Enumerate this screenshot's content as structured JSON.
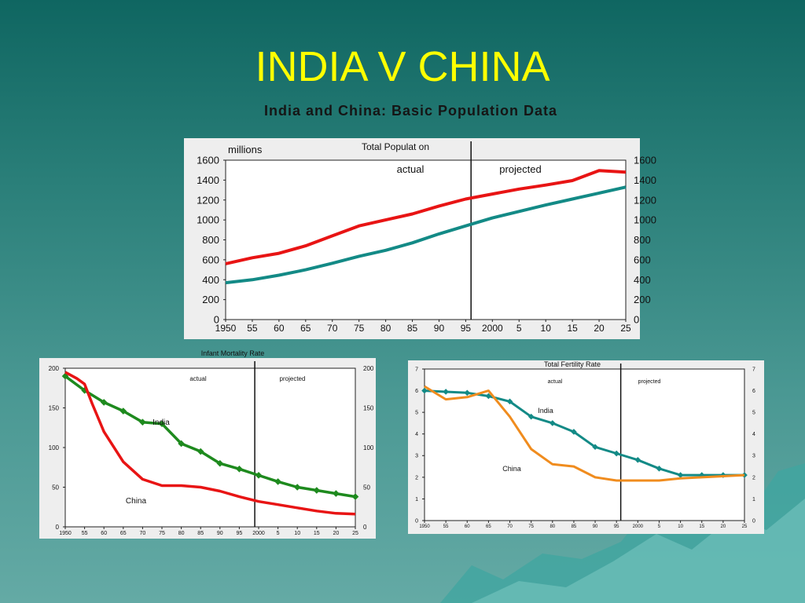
{
  "slide": {
    "title": "INDIA V CHINA",
    "subtitle": "India and China:  Basic Population Data"
  },
  "colors": {
    "india_population": "#e81414",
    "china_population": "#138a86",
    "india_infant": "#1e8a1e",
    "china_infant": "#e81414",
    "india_fertility": "#138a86",
    "china_fertility": "#f08c1e",
    "title": "#ffff00"
  },
  "chart_data": [
    {
      "type": "line",
      "title": "Total Populat on",
      "ylabel": "millions",
      "xlabel": "",
      "ylim": [
        0,
        1600
      ],
      "yticks": [
        "0",
        "200",
        "400",
        "600",
        "800",
        "1000",
        "1200",
        "1400",
        "1600"
      ],
      "xticks": [
        "1950",
        "55",
        "60",
        "65",
        "70",
        "75",
        "80",
        "85",
        "90",
        "95",
        "2000",
        "5",
        "10",
        "15",
        "20",
        "25"
      ],
      "divider_x": 1996,
      "region_labels": [
        "actual",
        "projected"
      ],
      "grid": false,
      "series": [
        {
          "x": [
            1950,
            1955,
            1960,
            1965,
            1970,
            1975,
            1980,
            1985,
            1990,
            1995,
            2000,
            2005,
            2010,
            2015,
            2020,
            2025
          ],
          "values": [
            560,
            620,
            665,
            740,
            840,
            940,
            1000,
            1060,
            1140,
            1210,
            1260,
            1310,
            1350,
            1395,
            1495,
            1480
          ]
        },
        {
          "x": [
            1950,
            1955,
            1960,
            1965,
            1970,
            1975,
            1980,
            1985,
            1990,
            1995,
            2000,
            2005,
            2010,
            2015,
            2020,
            2025
          ],
          "values": [
            370,
            400,
            445,
            500,
            565,
            635,
            695,
            770,
            860,
            940,
            1020,
            1085,
            1150,
            1210,
            1270,
            1330
          ]
        }
      ]
    },
    {
      "type": "line",
      "title": "Infant Mortality Rate",
      "ylim": [
        0,
        200
      ],
      "yticks": [
        "0",
        "50",
        "100",
        "150",
        "200"
      ],
      "xticks": [
        "1950",
        "55",
        "60",
        "65",
        "70",
        "75",
        "80",
        "85",
        "90",
        "95",
        "2000",
        "5",
        "10",
        "15",
        "20",
        "25"
      ],
      "divider_x": 1999,
      "region_labels": [
        "actual",
        "projected"
      ],
      "grid": false,
      "series": [
        {
          "name": "India",
          "x": [
            1950,
            1955,
            1960,
            1965,
            1970,
            1975,
            1980,
            1985,
            1990,
            1995,
            2000,
            2005,
            2010,
            2015,
            2020,
            2025
          ],
          "values": [
            190,
            172,
            157,
            146,
            132,
            130,
            105,
            95,
            80,
            73,
            65,
            57,
            50,
            46,
            42,
            38
          ]
        },
        {
          "name": "China",
          "x": [
            1950,
            1953,
            1955,
            1957,
            1960,
            1965,
            1970,
            1975,
            1980,
            1985,
            1990,
            1995,
            2000,
            2005,
            2010,
            2015,
            2020,
            2025
          ],
          "values": [
            195,
            187,
            180,
            155,
            120,
            82,
            60,
            52,
            52,
            50,
            45,
            38,
            32,
            28,
            24,
            20,
            17,
            16
          ]
        }
      ]
    },
    {
      "type": "line",
      "title": "Total Fertility Rate",
      "ylim": [
        0,
        7
      ],
      "yticks": [
        "0",
        "1",
        "2",
        "3",
        "4",
        "5",
        "6",
        "7"
      ],
      "xticks": [
        "1950",
        "55",
        "60",
        "65",
        "70",
        "75",
        "80",
        "85",
        "90",
        "95",
        "2000",
        "5",
        "10",
        "15",
        "20",
        "25"
      ],
      "divider_x": 1996,
      "region_labels": [
        "actual",
        "projected"
      ],
      "grid": false,
      "series": [
        {
          "name": "India",
          "x": [
            1950,
            1955,
            1960,
            1965,
            1970,
            1975,
            1980,
            1985,
            1990,
            1995,
            2000,
            2005,
            2010,
            2015,
            2020,
            2025
          ],
          "values": [
            6.0,
            5.95,
            5.9,
            5.75,
            5.5,
            4.8,
            4.5,
            4.1,
            3.4,
            3.1,
            2.8,
            2.4,
            2.1,
            2.1,
            2.1,
            2.1
          ]
        },
        {
          "name": "China",
          "x": [
            1950,
            1955,
            1960,
            1965,
            1970,
            1975,
            1980,
            1985,
            1990,
            1995,
            2000,
            2005,
            2010,
            2015,
            2020,
            2025
          ],
          "values": [
            6.2,
            5.6,
            5.7,
            6.0,
            4.8,
            3.3,
            2.6,
            2.5,
            2.0,
            1.85,
            1.85,
            1.85,
            1.95,
            2.0,
            2.05,
            2.1
          ]
        }
      ]
    }
  ]
}
